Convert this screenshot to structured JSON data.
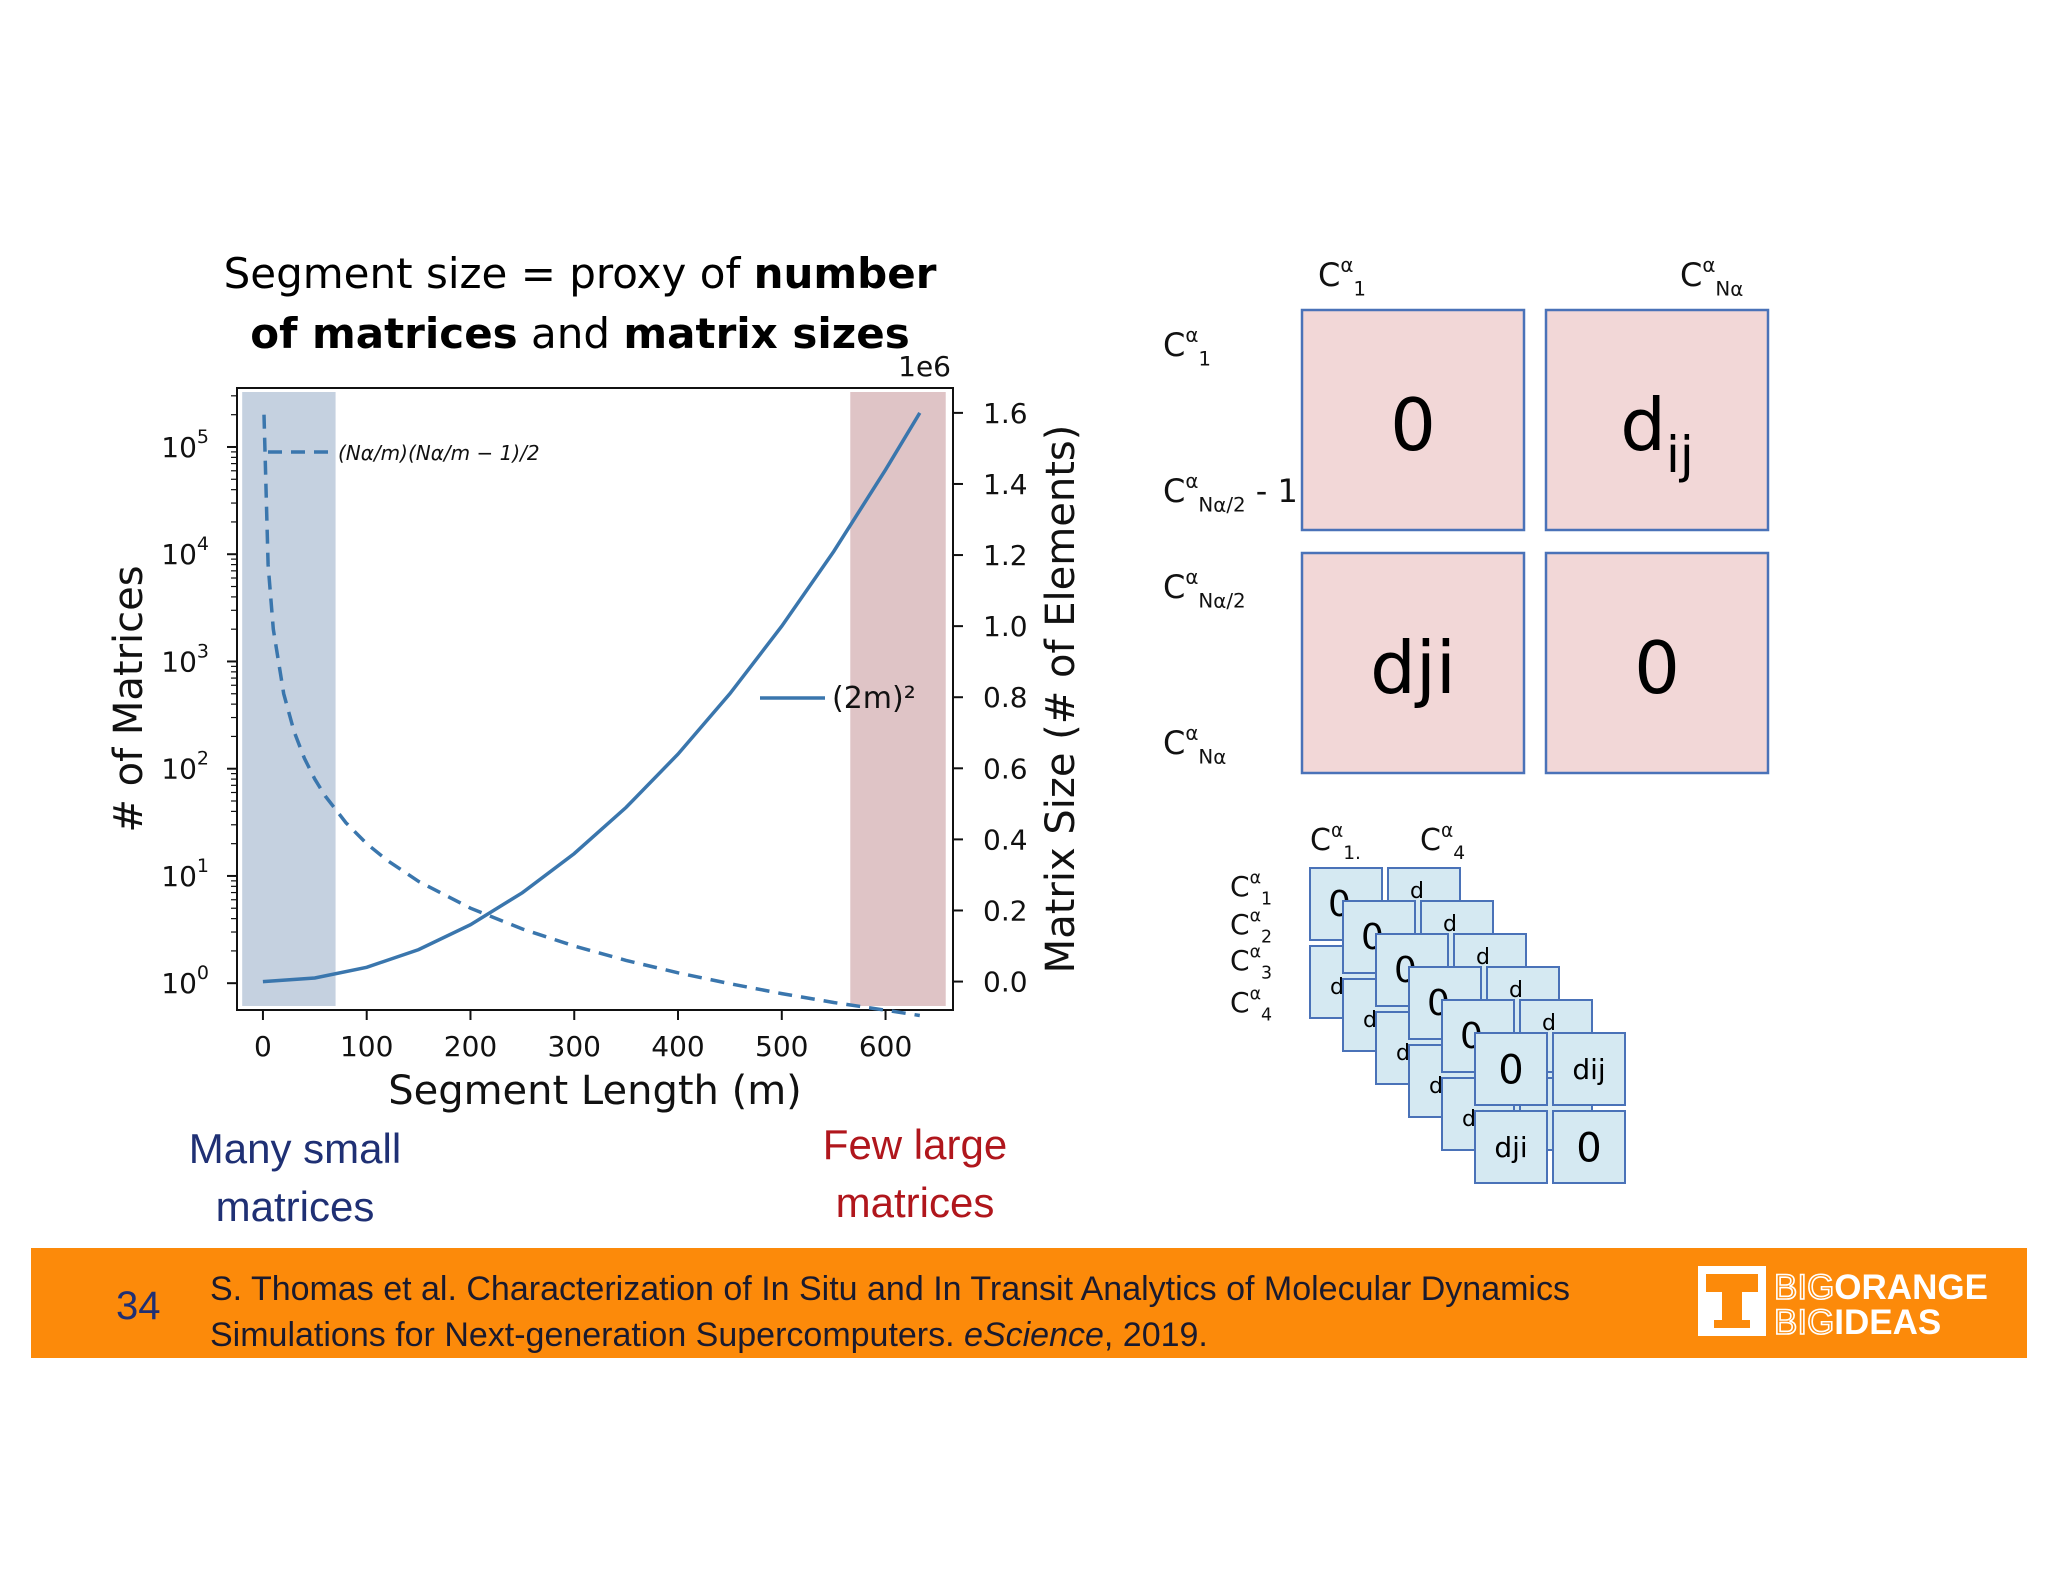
{
  "slide": {
    "title_part1": "Segment size = proxy of ",
    "title_bold1": "number of matrices",
    "title_part2": " and ",
    "title_bold2": "matrix sizes",
    "page_number": "34",
    "citation_line1": "S. Thomas et al.  Characterization of In Situ and In Transit Analytics of Molecular Dynamics",
    "citation_line2_a": "Simulations for Next-generation Supercomputers. ",
    "citation_line2_italic": "eScience",
    "citation_line2_b": ", 2019.",
    "label_many_line1": "Many small",
    "label_many_line2": "matrices",
    "label_few_line1": "Few large",
    "label_few_line2": "matrices",
    "logo_line1_a": "BIG",
    "logo_line1_b": "ORANGE",
    "logo_line2_a": "BIG",
    "logo_line2_b": "IDEAS",
    "colors": {
      "footer": "#fc8a0a",
      "series": "#3a76ad",
      "blue_band": "#c5d1e0",
      "red_band": "#dfc4c6",
      "matrix_fill": "#f2d7d7",
      "matrix_border": "#4a72b8",
      "small_fill": "#d5e9f2"
    }
  },
  "chart_data": {
    "type": "line",
    "xlabel": "Segment Length (m)",
    "ylabel_left": "# of Matrices",
    "ylabel_right": "Matrix Size (# of Elements)",
    "right_scale_label": "1e6",
    "xlim": [
      -25,
      665
    ],
    "xticks": [
      0,
      100,
      200,
      300,
      400,
      500,
      600
    ],
    "ylim_left_log10": [
      -0.25,
      5.55
    ],
    "yticks_left": [
      {
        "exp": 0,
        "label": "10",
        "sup": "0"
      },
      {
        "exp": 1,
        "label": "10",
        "sup": "1"
      },
      {
        "exp": 2,
        "label": "10",
        "sup": "2"
      },
      {
        "exp": 3,
        "label": "10",
        "sup": "3"
      },
      {
        "exp": 4,
        "label": "10",
        "sup": "4"
      },
      {
        "exp": 5,
        "label": "10",
        "sup": "5"
      }
    ],
    "ylim_right": [
      -0.08,
      1.67
    ],
    "yticks_right": [
      {
        "v": 0.0,
        "label": "0.0"
      },
      {
        "v": 0.2,
        "label": "0.2"
      },
      {
        "v": 0.4,
        "label": "0.4"
      },
      {
        "v": 0.6,
        "label": "0.6"
      },
      {
        "v": 0.8,
        "label": "0.8"
      },
      {
        "v": 1.0,
        "label": "1.0"
      },
      {
        "v": 1.2,
        "label": "1.2"
      },
      {
        "v": 1.4,
        "label": "1.4"
      },
      {
        "v": 1.6,
        "label": "1.6"
      }
    ],
    "shaded_regions": [
      {
        "name": "many-small",
        "x0": -20,
        "x1": 70
      },
      {
        "name": "few-large",
        "x0": 566,
        "x1": 658
      }
    ],
    "series": [
      {
        "name": "number of matrices",
        "axis": "left",
        "style": "dashed",
        "legend_label": "(Nα/m)(Nα/m − 1)/2",
        "x": [
          1,
          5,
          10,
          20,
          30,
          40,
          50,
          60,
          80,
          100,
          120,
          150,
          200,
          250,
          300,
          350,
          400,
          450,
          500,
          550,
          600,
          633
        ],
        "y": [
          200000,
          8000,
          2000,
          500,
          222,
          125,
          80,
          55.6,
          31.3,
          20,
          13.9,
          8.9,
          5.0,
          3.2,
          2.22,
          1.63,
          1.25,
          0.99,
          0.8,
          0.66,
          0.56,
          0.5
        ]
      },
      {
        "name": "matrix size",
        "axis": "right",
        "style": "solid",
        "legend_label": "(2m)²",
        "x": [
          0,
          50,
          100,
          150,
          200,
          250,
          300,
          350,
          400,
          450,
          500,
          550,
          600,
          633
        ],
        "y": [
          0,
          0.01,
          0.04,
          0.09,
          0.16,
          0.25,
          0.36,
          0.49,
          0.64,
          0.81,
          1.0,
          1.21,
          1.44,
          1.6
        ]
      }
    ],
    "big_matrix": {
      "col_labels": [
        {
          "base": "C",
          "sup": "α",
          "sub": "1"
        },
        {
          "base": "C",
          "sup": "α",
          "sub": "Nα"
        }
      ],
      "row_labels": [
        {
          "base": "C",
          "sup": "α",
          "sub": "1",
          "suffix": ""
        },
        {
          "base": "C",
          "sup": "α",
          "sub": "Nα/2",
          "suffix": " - 1"
        },
        {
          "base": "C",
          "sup": "α",
          "sub": "Nα/2",
          "suffix": ""
        },
        {
          "base": "C",
          "sup": "α",
          "sub": "Nα",
          "suffix": ""
        }
      ],
      "cells": [
        {
          "main": "0",
          "sub": ""
        },
        {
          "main": "d",
          "sub": "ij"
        },
        {
          "main": "dji",
          "sub": ""
        },
        {
          "main": "0",
          "sub": ""
        }
      ]
    },
    "small_stack": {
      "col_labels": [
        {
          "base": "C",
          "sup": "α",
          "sub": "1."
        },
        {
          "base": "C",
          "sup": "α",
          "sub": "4"
        }
      ],
      "row_labels": [
        {
          "base": "C",
          "sup": "α",
          "sub": "1"
        },
        {
          "base": "C",
          "sup": "α",
          "sub": "2"
        },
        {
          "base": "C",
          "sup": "α",
          "sub": "3"
        },
        {
          "base": "C",
          "sup": "α",
          "sub": "4"
        }
      ],
      "front_cells": [
        "0",
        "dij",
        "dji",
        "0"
      ],
      "partial_glyphs": [
        "0",
        "dij",
        "d",
        "0"
      ]
    }
  }
}
